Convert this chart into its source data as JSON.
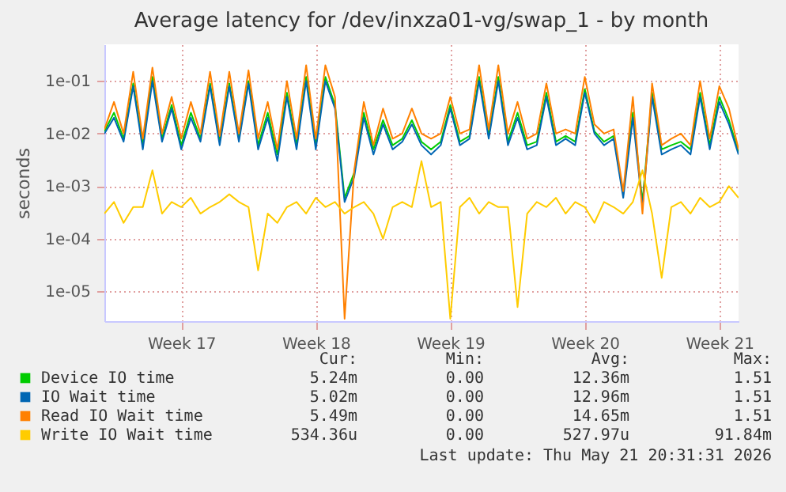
{
  "chart_data": {
    "type": "line",
    "title": "Average latency for /dev/inxza01-vg/swap_1 - by month",
    "ylabel": "seconds",
    "log": "y",
    "grid": true,
    "legend": "bottom",
    "line_style": "solid",
    "marker": "none",
    "ylim": [
      2.7e-06,
      0.5
    ],
    "yticks": [
      {
        "value": 1e-05,
        "label": "1e-05"
      },
      {
        "value": 0.0001,
        "label": "1e-04"
      },
      {
        "value": 0.001,
        "label": "1e-03"
      },
      {
        "value": 0.01,
        "label": "1e-02"
      },
      {
        "value": 0.1,
        "label": "1e-01"
      }
    ],
    "categories": [
      null,
      null,
      null,
      null,
      null,
      null,
      null,
      null,
      "Week 17",
      null,
      null,
      null,
      null,
      null,
      null,
      null,
      null,
      null,
      null,
      null,
      null,
      null,
      "Week 18",
      null,
      null,
      null,
      null,
      null,
      null,
      null,
      null,
      null,
      null,
      null,
      null,
      null,
      "Week 19",
      null,
      null,
      null,
      null,
      null,
      null,
      null,
      null,
      null,
      null,
      null,
      null,
      null,
      "Week 20",
      null,
      null,
      null,
      null,
      null,
      null,
      null,
      null,
      null,
      null,
      null,
      null,
      null,
      "Week 21",
      null,
      null
    ],
    "series": [
      {
        "name": "Device IO time",
        "color": "#00cc00",
        "values": [
          0.011,
          0.025,
          0.008,
          0.09,
          0.006,
          0.12,
          0.008,
          0.035,
          0.006,
          0.025,
          0.008,
          0.09,
          0.007,
          0.09,
          0.008,
          0.1,
          0.006,
          0.025,
          0.004,
          0.06,
          0.006,
          0.12,
          0.006,
          0.12,
          0.035,
          0.0006,
          0.0018,
          0.025,
          0.005,
          0.018,
          0.006,
          0.008,
          0.018,
          0.007,
          0.005,
          0.007,
          0.035,
          0.007,
          0.009,
          0.12,
          0.009,
          0.12,
          0.007,
          0.025,
          0.006,
          0.007,
          0.06,
          0.007,
          0.009,
          0.007,
          0.07,
          0.011,
          0.007,
          0.009,
          0.0007,
          0.025,
          0.0005,
          0.06,
          0.005,
          0.006,
          0.007,
          0.005,
          0.06,
          0.006,
          0.05,
          0.018,
          0.0045
        ]
      },
      {
        "name": "IO Wait time",
        "color": "#0066b3",
        "values": [
          0.01,
          0.02,
          0.007,
          0.08,
          0.005,
          0.1,
          0.007,
          0.03,
          0.005,
          0.02,
          0.007,
          0.08,
          0.006,
          0.08,
          0.007,
          0.09,
          0.005,
          0.02,
          0.003,
          0.05,
          0.005,
          0.1,
          0.005,
          0.1,
          0.03,
          0.0005,
          0.0015,
          0.02,
          0.004,
          0.015,
          0.005,
          0.007,
          0.015,
          0.006,
          0.004,
          0.006,
          0.03,
          0.006,
          0.008,
          0.1,
          0.008,
          0.1,
          0.006,
          0.02,
          0.005,
          0.006,
          0.05,
          0.006,
          0.008,
          0.006,
          0.06,
          0.01,
          0.006,
          0.008,
          0.0006,
          0.02,
          0.0004,
          0.05,
          0.004,
          0.005,
          0.006,
          0.004,
          0.05,
          0.005,
          0.04,
          0.015,
          0.004
        ]
      },
      {
        "name": "Read IO Wait time",
        "color": "#ff8000",
        "values": [
          0.012,
          0.04,
          0.01,
          0.15,
          0.008,
          0.18,
          0.01,
          0.05,
          0.008,
          0.04,
          0.01,
          0.15,
          0.009,
          0.15,
          0.01,
          0.16,
          0.008,
          0.04,
          0.005,
          0.1,
          0.008,
          0.2,
          0.008,
          0.2,
          0.05,
          3e-06,
          0.002,
          0.04,
          0.006,
          0.03,
          0.008,
          0.01,
          0.03,
          0.01,
          0.008,
          0.01,
          0.05,
          0.01,
          0.012,
          0.2,
          0.012,
          0.2,
          0.01,
          0.04,
          0.008,
          0.01,
          0.09,
          0.01,
          0.012,
          0.01,
          0.12,
          0.015,
          0.01,
          0.012,
          0.0008,
          0.05,
          0.0003,
          0.09,
          0.006,
          0.008,
          0.01,
          0.006,
          0.1,
          0.008,
          0.08,
          0.03,
          0.005
        ]
      },
      {
        "name": "Write IO Wait time",
        "color": "#ffcc00",
        "values": [
          0.0003,
          0.0005,
          0.0002,
          0.0004,
          0.0004,
          0.002,
          0.0003,
          0.0005,
          0.0004,
          0.0006,
          0.0003,
          0.0004,
          0.0005,
          0.0007,
          0.0005,
          0.0004,
          2.5e-05,
          0.0003,
          0.0002,
          0.0004,
          0.0005,
          0.0003,
          0.0006,
          0.0004,
          0.0005,
          0.0003,
          0.0004,
          0.0005,
          0.0003,
          0.0001,
          0.0004,
          0.0005,
          0.0004,
          0.003,
          0.0004,
          0.0005,
          3e-06,
          0.0004,
          0.0006,
          0.0003,
          0.0005,
          0.0004,
          0.0004,
          5e-06,
          0.0003,
          0.0005,
          0.0004,
          0.0006,
          0.0003,
          0.0005,
          0.0004,
          0.0002,
          0.0005,
          0.0004,
          0.0003,
          0.0005,
          0.002,
          0.0003,
          1.8e-05,
          0.0004,
          0.0005,
          0.0003,
          0.0006,
          0.0004,
          0.0005,
          0.001,
          0.0006
        ]
      }
    ],
    "annotations": [
      "Cur:",
      "Min:",
      "Avg:",
      "Max:",
      "5.24m",
      "0.00",
      "12.36m",
      "1.51",
      "5.02m",
      "0.00",
      "12.96m",
      "1.51",
      "5.49m",
      "0.00",
      "14.65m",
      "1.51",
      "534.36u",
      "0.00",
      "527.97u",
      "91.84m",
      "Last update: Thu May 21 20:31:31 2026"
    ]
  }
}
